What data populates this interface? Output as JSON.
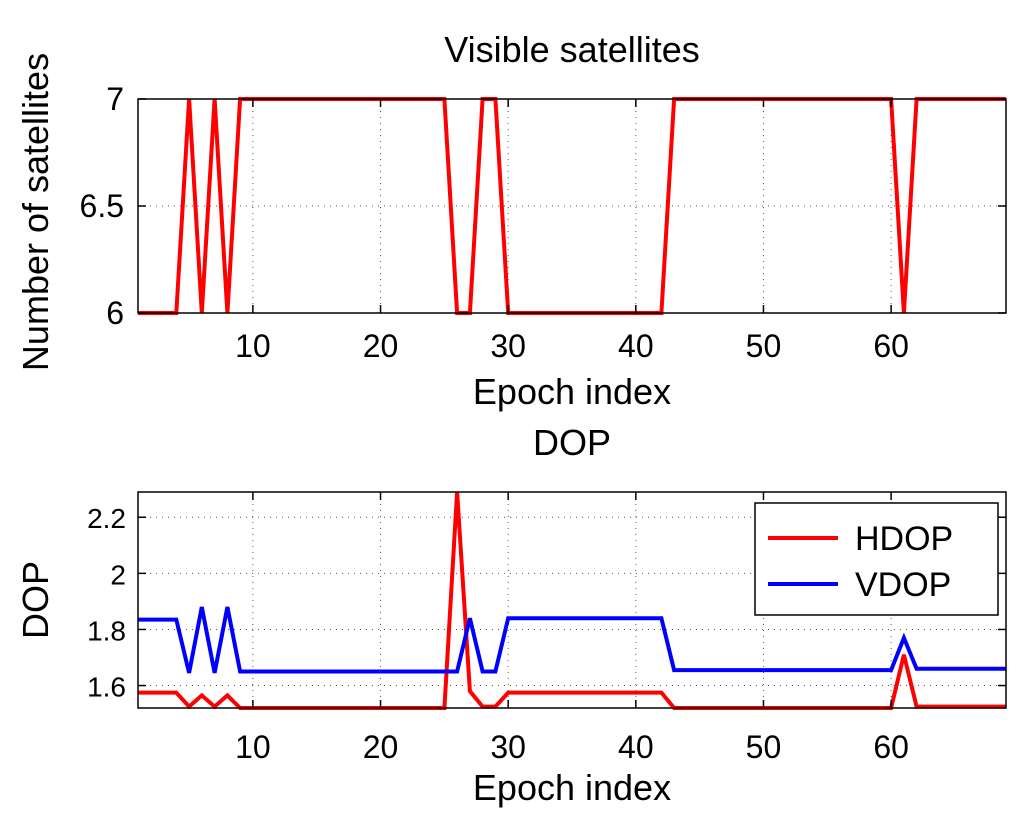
{
  "chart_data": [
    {
      "type": "line",
      "title": "Visible satellites",
      "xlabel": "Epoch index",
      "ylabel": "Number of satellites",
      "xlim": [
        1,
        69
      ],
      "ylim": [
        6,
        7
      ],
      "xticks": [
        10,
        20,
        30,
        40,
        50,
        60
      ],
      "yticks": [
        6,
        6.5,
        7
      ],
      "ytick_labels": [
        "6",
        "6.5",
        "7"
      ],
      "grid": true,
      "series": [
        {
          "color": "#ff0000",
          "x": [
            1,
            2,
            3,
            4,
            5,
            6,
            7,
            8,
            9,
            10,
            11,
            12,
            13,
            14,
            15,
            16,
            17,
            18,
            19,
            20,
            21,
            22,
            23,
            24,
            25,
            26,
            27,
            28,
            29,
            30,
            31,
            32,
            33,
            34,
            35,
            36,
            37,
            38,
            39,
            40,
            41,
            42,
            43,
            44,
            45,
            46,
            47,
            48,
            49,
            50,
            51,
            52,
            53,
            54,
            55,
            56,
            57,
            58,
            59,
            60,
            61,
            62,
            63,
            64,
            65,
            66,
            67,
            68,
            69
          ],
          "y": [
            6,
            6,
            6,
            6,
            7,
            6,
            7,
            6,
            7,
            7,
            7,
            7,
            7,
            7,
            7,
            7,
            7,
            7,
            7,
            7,
            7,
            7,
            7,
            7,
            7,
            6,
            6,
            7,
            7,
            6,
            6,
            6,
            6,
            6,
            6,
            6,
            6,
            6,
            6,
            6,
            6,
            6,
            7,
            7,
            7,
            7,
            7,
            7,
            7,
            7,
            7,
            7,
            7,
            7,
            7,
            7,
            7,
            7,
            7,
            7,
            6,
            7,
            7,
            7,
            7,
            7,
            7,
            7,
            7
          ]
        }
      ]
    },
    {
      "type": "line",
      "title": "DOP",
      "xlabel": "Epoch index",
      "ylabel": "DOP",
      "xlim": [
        1,
        69
      ],
      "ylim": [
        1.52,
        2.29
      ],
      "xticks": [
        10,
        20,
        30,
        40,
        50,
        60
      ],
      "yticks": [
        1.6,
        1.8,
        2.0,
        2.2
      ],
      "ytick_labels": [
        "1.6",
        "1.8",
        "2",
        "2.2"
      ],
      "grid": true,
      "legend": "top-right",
      "series": [
        {
          "name": "HDOP",
          "color": "#ff0000",
          "x": [
            1,
            2,
            3,
            4,
            5,
            6,
            7,
            8,
            9,
            10,
            11,
            12,
            13,
            14,
            15,
            16,
            17,
            18,
            19,
            20,
            21,
            22,
            23,
            24,
            25,
            26,
            27,
            28,
            29,
            30,
            31,
            32,
            33,
            34,
            35,
            36,
            37,
            38,
            39,
            40,
            41,
            42,
            43,
            44,
            45,
            46,
            47,
            48,
            49,
            50,
            51,
            52,
            53,
            54,
            55,
            56,
            57,
            58,
            59,
            60,
            61,
            62,
            63,
            64,
            65,
            66,
            67,
            68,
            69
          ],
          "y": [
            1.575,
            1.575,
            1.575,
            1.575,
            1.525,
            1.565,
            1.525,
            1.565,
            1.52,
            1.52,
            1.52,
            1.52,
            1.52,
            1.52,
            1.52,
            1.52,
            1.52,
            1.52,
            1.52,
            1.52,
            1.52,
            1.52,
            1.52,
            1.52,
            1.52,
            2.29,
            1.58,
            1.525,
            1.525,
            1.575,
            1.575,
            1.575,
            1.575,
            1.575,
            1.575,
            1.575,
            1.575,
            1.575,
            1.575,
            1.575,
            1.575,
            1.575,
            1.52,
            1.52,
            1.52,
            1.52,
            1.52,
            1.52,
            1.52,
            1.52,
            1.52,
            1.52,
            1.52,
            1.52,
            1.52,
            1.52,
            1.52,
            1.52,
            1.52,
            1.52,
            1.71,
            1.525,
            1.525,
            1.525,
            1.525,
            1.525,
            1.525,
            1.525,
            1.525
          ]
        },
        {
          "name": "VDOP",
          "color": "#0000ff",
          "x": [
            1,
            2,
            3,
            4,
            5,
            6,
            7,
            8,
            9,
            10,
            11,
            12,
            13,
            14,
            15,
            16,
            17,
            18,
            19,
            20,
            21,
            22,
            23,
            24,
            25,
            26,
            27,
            28,
            29,
            30,
            31,
            32,
            33,
            34,
            35,
            36,
            37,
            38,
            39,
            40,
            41,
            42,
            43,
            44,
            45,
            46,
            47,
            48,
            49,
            50,
            51,
            52,
            53,
            54,
            55,
            56,
            57,
            58,
            59,
            60,
            61,
            62,
            63,
            64,
            65,
            66,
            67,
            68,
            69
          ],
          "y": [
            1.835,
            1.835,
            1.835,
            1.835,
            1.645,
            1.88,
            1.645,
            1.88,
            1.65,
            1.65,
            1.65,
            1.65,
            1.65,
            1.65,
            1.65,
            1.65,
            1.65,
            1.65,
            1.65,
            1.65,
            1.65,
            1.65,
            1.65,
            1.65,
            1.65,
            1.65,
            1.84,
            1.65,
            1.65,
            1.84,
            1.84,
            1.84,
            1.84,
            1.84,
            1.84,
            1.84,
            1.84,
            1.84,
            1.84,
            1.84,
            1.84,
            1.84,
            1.655,
            1.655,
            1.655,
            1.655,
            1.655,
            1.655,
            1.655,
            1.655,
            1.655,
            1.655,
            1.655,
            1.655,
            1.655,
            1.655,
            1.655,
            1.655,
            1.655,
            1.655,
            1.77,
            1.66,
            1.66,
            1.66,
            1.66,
            1.66,
            1.66,
            1.66,
            1.66
          ]
        }
      ]
    }
  ]
}
